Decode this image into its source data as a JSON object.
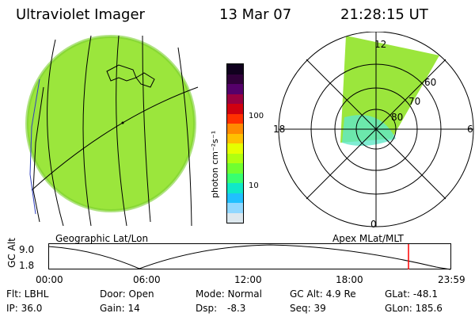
{
  "header": {
    "title": "Ultraviolet Imager",
    "date": "13 Mar 07",
    "time": "21:28:15 UT"
  },
  "colorbar": {
    "unit_label": "photon cm⁻²s⁻¹",
    "ticks": [
      "100",
      "10"
    ],
    "colors_top_to_bottom": [
      "#10001e",
      "#30003a",
      "#55006a",
      "#9a0040",
      "#d00010",
      "#ff3000",
      "#ff8a00",
      "#ffc000",
      "#e6ff00",
      "#b0ff10",
      "#70ff30",
      "#38ff70",
      "#10e8c8",
      "#20c0ff",
      "#90d8ff",
      "#dde8ee"
    ]
  },
  "left_map": {
    "caption": "Geographic Lat/Lon",
    "fill_color": "#9be63c"
  },
  "polar_plot": {
    "caption": "Apex MLat/MLT",
    "mlt_labels": {
      "top": "12",
      "left": "18",
      "right": "6",
      "bottom": "0"
    },
    "lat_labels": [
      "60",
      "70",
      "80"
    ]
  },
  "alt_plot": {
    "axis_label": "GC Alt",
    "y_ticks": [
      "9.0",
      "1.8"
    ],
    "x_ticks": [
      "00:00",
      "06:00",
      "12:00",
      "18:00",
      "23:59"
    ],
    "marker_color": "#ff0000"
  },
  "info": {
    "flt": "Flt: LBHL",
    "ip": "IP: 36.0",
    "door": "Door: Open",
    "gain": "Gain: 14",
    "mode": "Mode: Normal",
    "dsp_label": "Dsp:",
    "dsp_value": "-8.3",
    "gcalt": "GC Alt: 4.9 Re",
    "seq": "Seq: 39",
    "glat": "GLat: -48.1",
    "glon": "GLon: 185.6"
  }
}
